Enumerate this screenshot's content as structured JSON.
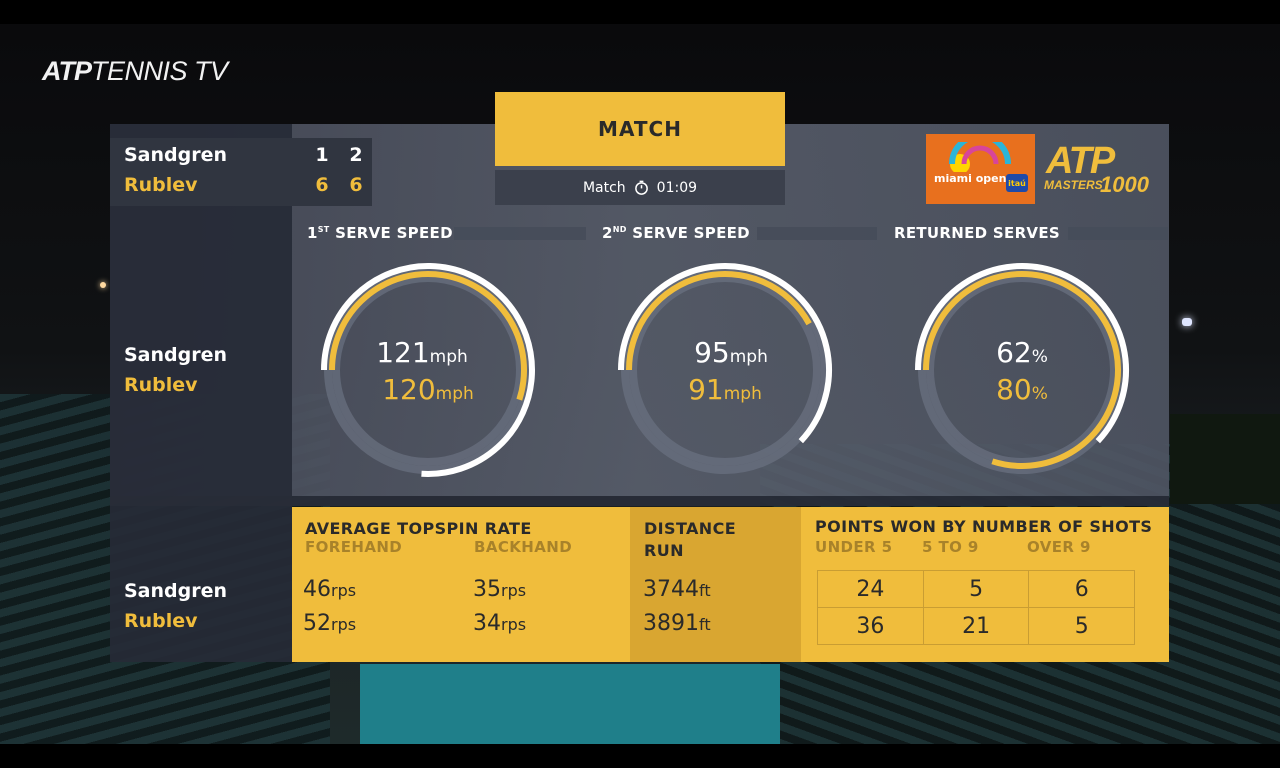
{
  "broadcaster": {
    "logo_atp": "ATP",
    "logo_tv": "TENNIS TV"
  },
  "header": {
    "title": "MATCH",
    "timer_label": "Match",
    "timer_value": "01:09"
  },
  "tournament": {
    "name": "miami open",
    "sponsor": "itaú",
    "series_logo_atp": "ATP",
    "series_logo_masters": "MASTERS",
    "series_logo_1000": "1000"
  },
  "players": [
    {
      "name": "Sandgren",
      "sets": [
        "1",
        "2"
      ],
      "color": "#ffffff"
    },
    {
      "name": "Rublev",
      "sets": [
        "6",
        "6"
      ],
      "color": "#f0bd3c"
    }
  ],
  "gauges": [
    {
      "title_pre": "1",
      "title_sup": "ST",
      "title_post": " SERVE SPEED",
      "p1": "121",
      "p2": "120",
      "unit": "mph",
      "p1_fraction": 0.76,
      "p2_fraction": 0.55
    },
    {
      "title_pre": "2",
      "title_sup": "ND",
      "title_post": " SERVE SPEED",
      "p1": "95",
      "p2": "91",
      "unit": "mph",
      "p1_fraction": 0.62,
      "p2_fraction": 0.42
    },
    {
      "title_pre": "",
      "title_sup": "",
      "title_post": "RETURNED SERVES",
      "p1": "62",
      "p2": "80",
      "unit": "%",
      "p1_fraction": 0.62,
      "p2_fraction": 0.8
    }
  ],
  "topspin": {
    "title": "AVERAGE TOPSPIN RATE",
    "forehand_label": "FOREHAND",
    "backhand_label": "BACKHAND",
    "unit": "rps",
    "forehand": [
      "46",
      "52"
    ],
    "backhand": [
      "35",
      "34"
    ]
  },
  "distance": {
    "title_line1": "DISTANCE",
    "title_line2": "RUN",
    "unit": "ft",
    "values": [
      "3744",
      "3891"
    ]
  },
  "shots": {
    "title": "POINTS WON BY NUMBER OF SHOTS",
    "columns": [
      "UNDER 5",
      "5 TO 9",
      "OVER 9"
    ],
    "rows": [
      [
        "24",
        "5",
        "6"
      ],
      [
        "36",
        "21",
        "5"
      ]
    ]
  },
  "colors": {
    "accent": "#f0bd3c",
    "accent_dark": "#d9a631",
    "panel": "#5c6270",
    "track": "#6b7282"
  }
}
